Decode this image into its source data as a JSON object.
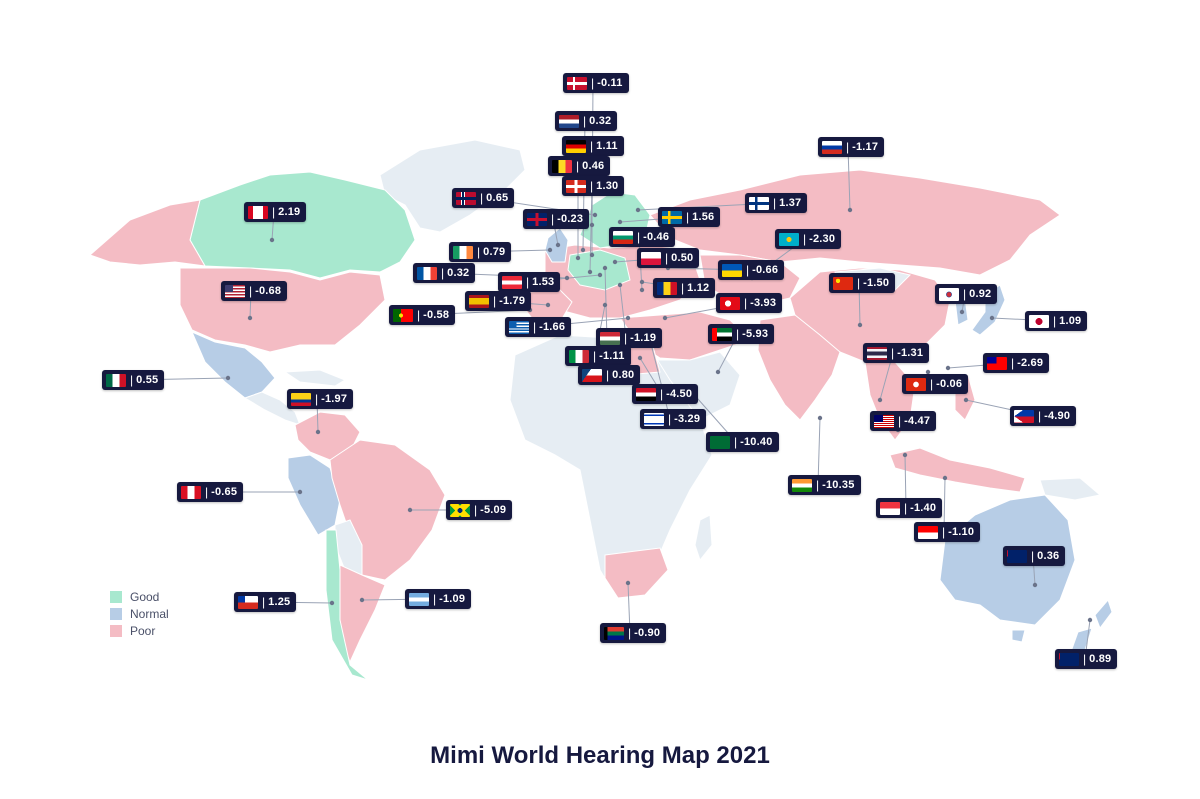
{
  "title": "Mimi World Hearing Map 2021",
  "legend": [
    {
      "label": "Good",
      "color": "#a8e8cf"
    },
    {
      "label": "Normal",
      "color": "#b7cde6"
    },
    {
      "label": "Poor",
      "color": "#f4bcc4"
    }
  ],
  "colors": {
    "good": "#a8e8cf",
    "normal": "#b7cde6",
    "poor": "#f4bcc4",
    "nodata": "#e6edf3",
    "badge": "#16193f",
    "leader": "#9aa3b5"
  },
  "countries": [
    {
      "id": "denmark",
      "value": "-0.11",
      "flag": "denmark-flag-icon"
    },
    {
      "id": "netherlands",
      "value": "0.32",
      "flag": "netherlands-flag-icon"
    },
    {
      "id": "germany",
      "value": "1.11",
      "flag": "germany-flag-icon"
    },
    {
      "id": "belgium",
      "value": "0.46",
      "flag": "belgium-flag-icon"
    },
    {
      "id": "switzerland",
      "value": "1.30",
      "flag": "switzerland-flag-icon"
    },
    {
      "id": "norway",
      "value": "0.65",
      "flag": "norway-flag-icon"
    },
    {
      "id": "united-kingdom",
      "value": "-0.23",
      "flag": "uk-flag-icon"
    },
    {
      "id": "sweden",
      "value": "1.56",
      "flag": "sweden-flag-icon"
    },
    {
      "id": "finland",
      "value": "1.37",
      "flag": "finland-flag-icon"
    },
    {
      "id": "russia",
      "value": "-1.17",
      "flag": "russia-flag-icon"
    },
    {
      "id": "canada",
      "value": "2.19",
      "flag": "canada-flag-icon"
    },
    {
      "id": "bulgaria",
      "value": "-0.46",
      "flag": "bulgaria-flag-icon"
    },
    {
      "id": "ireland",
      "value": "0.79",
      "flag": "ireland-flag-icon"
    },
    {
      "id": "poland",
      "value": "0.50",
      "flag": "poland-flag-icon"
    },
    {
      "id": "kazakhstan",
      "value": "-2.30",
      "flag": "kazakhstan-flag-icon"
    },
    {
      "id": "france",
      "value": "0.32",
      "flag": "france-flag-icon"
    },
    {
      "id": "austria",
      "value": "1.53",
      "flag": "austria-flag-icon"
    },
    {
      "id": "ukraine",
      "value": "-0.66",
      "flag": "ukraine-flag-icon"
    },
    {
      "id": "united-states",
      "value": "-0.68",
      "flag": "usa-flag-icon"
    },
    {
      "id": "spain",
      "value": "-1.79",
      "flag": "spain-flag-icon"
    },
    {
      "id": "romania",
      "value": "1.12",
      "flag": "romania-flag-icon"
    },
    {
      "id": "turkey",
      "value": "-3.93",
      "flag": "turkey-flag-icon"
    },
    {
      "id": "china",
      "value": "-1.50",
      "flag": "china-flag-icon"
    },
    {
      "id": "south-korea",
      "value": "0.92",
      "flag": "south-korea-flag-icon"
    },
    {
      "id": "portugal",
      "value": "-0.58",
      "flag": "portugal-flag-icon"
    },
    {
      "id": "greece",
      "value": "-1.66",
      "flag": "greece-flag-icon"
    },
    {
      "id": "hungary",
      "value": "-1.19",
      "flag": "hungary-flag-icon"
    },
    {
      "id": "uae",
      "value": "-5.93",
      "flag": "uae-flag-icon"
    },
    {
      "id": "japan",
      "value": "1.09",
      "flag": "japan-flag-icon"
    },
    {
      "id": "italy",
      "value": "-1.11",
      "flag": "italy-flag-icon"
    },
    {
      "id": "thailand",
      "value": "-1.31",
      "flag": "thailand-flag-icon"
    },
    {
      "id": "taiwan",
      "value": "-2.69",
      "flag": "taiwan-flag-icon"
    },
    {
      "id": "mexico",
      "value": "0.55",
      "flag": "mexico-flag-icon"
    },
    {
      "id": "czech-republic",
      "value": "0.80",
      "flag": "czech-flag-icon"
    },
    {
      "id": "hong-kong",
      "value": "-0.06",
      "flag": "hong-kong-flag-icon"
    },
    {
      "id": "colombia",
      "value": "-1.97",
      "flag": "colombia-flag-icon"
    },
    {
      "id": "egypt",
      "value": "-4.50",
      "flag": "egypt-flag-icon"
    },
    {
      "id": "israel",
      "value": "-3.29",
      "flag": "israel-flag-icon"
    },
    {
      "id": "malaysia",
      "value": "-4.47",
      "flag": "malaysia-flag-icon"
    },
    {
      "id": "philippines",
      "value": "-4.90",
      "flag": "philippines-flag-icon"
    },
    {
      "id": "saudi-arabia",
      "value": "-10.40",
      "flag": "saudi-arabia-flag-icon"
    },
    {
      "id": "india",
      "value": "-10.35",
      "flag": "india-flag-icon"
    },
    {
      "id": "peru",
      "value": "-0.65",
      "flag": "peru-flag-icon"
    },
    {
      "id": "brazil",
      "value": "-5.09",
      "flag": "brazil-flag-icon"
    },
    {
      "id": "singapore",
      "value": "-1.40",
      "flag": "singapore-flag-icon"
    },
    {
      "id": "indonesia",
      "value": "-1.10",
      "flag": "indonesia-flag-icon"
    },
    {
      "id": "australia",
      "value": "0.36",
      "flag": "australia-flag-icon"
    },
    {
      "id": "chile",
      "value": "1.25",
      "flag": "chile-flag-icon"
    },
    {
      "id": "argentina",
      "value": "-1.09",
      "flag": "argentina-flag-icon"
    },
    {
      "id": "south-africa",
      "value": "-0.90",
      "flag": "south-africa-flag-icon"
    },
    {
      "id": "new-zealand",
      "value": "0.89",
      "flag": "new-zealand-flag-icon"
    }
  ]
}
